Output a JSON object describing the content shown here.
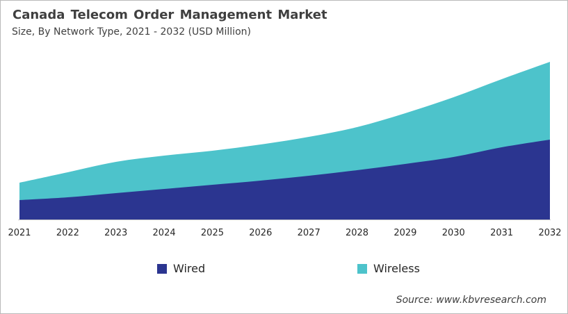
{
  "header": {
    "title": "Canada Telecom Order Management Market",
    "subtitle": "Size, By Network Type, 2021 - 2032 (USD Million)"
  },
  "chart_data": {
    "type": "area",
    "stacked": true,
    "title": "Canada Telecom Order Management Market",
    "subtitle": "Size, By Network Type, 2021 - 2032 (USD Million)",
    "xlabel": "",
    "ylabel": "",
    "y_axis_shown": false,
    "implied_unit": "USD Million",
    "values_note": "No numeric y-axis is shown in the chart; values are relative magnitudes estimated from the plotted area heights.",
    "grid": false,
    "legend_position": "bottom",
    "categories": [
      "2021",
      "2022",
      "2023",
      "2024",
      "2025",
      "2026",
      "2027",
      "2028",
      "2029",
      "2030",
      "2031",
      "2032"
    ],
    "series": [
      {
        "name": "Wired",
        "color": "#2b3590",
        "values": [
          28,
          32,
          38,
          44,
          50,
          56,
          63,
          71,
          80,
          90,
          104,
          115
        ]
      },
      {
        "name": "Wireless",
        "color": "#4dc3cb",
        "values": [
          25,
          36,
          45,
          48,
          49,
          52,
          56,
          62,
          73,
          86,
          98,
          112
        ]
      }
    ],
    "totals": [
      53,
      68,
      83,
      92,
      99,
      108,
      119,
      133,
      153,
      176,
      202,
      227
    ]
  },
  "source": {
    "text": "Source: www.kbvresearch.com"
  }
}
